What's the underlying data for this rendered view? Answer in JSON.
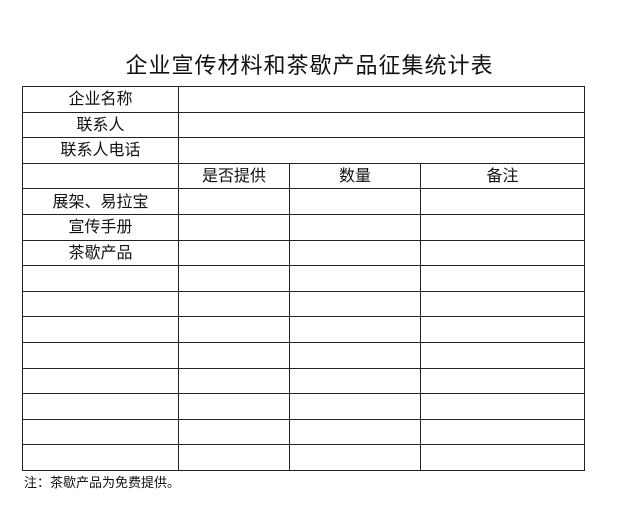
{
  "title": "企业宣传材料和茶歇产品征集统计表",
  "info_rows": [
    "企业名称",
    "联系人",
    "联系人电话"
  ],
  "columns": [
    "",
    "是否提供",
    "数量",
    "备注"
  ],
  "items": [
    "展架、易拉宝",
    "宣传手册",
    "茶歇产品"
  ],
  "empty_rows": 8,
  "note": "注：茶歇产品为免费提供。"
}
